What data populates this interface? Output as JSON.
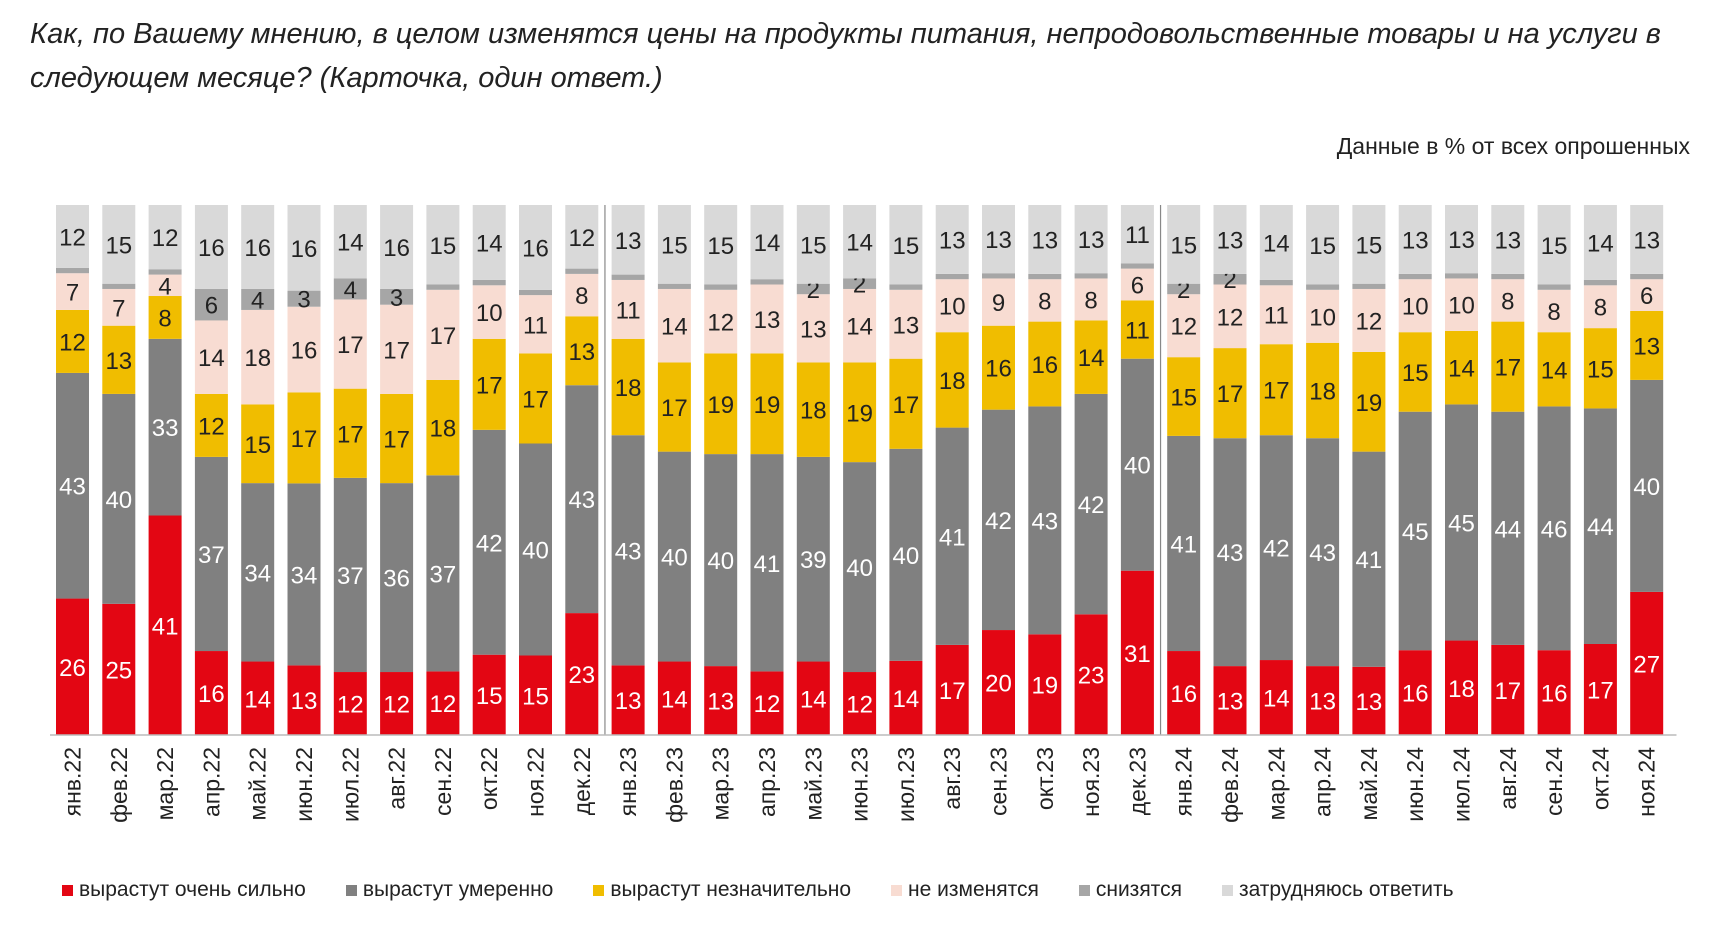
{
  "title": "Как, по Вашему мнению, в целом изменятся цены на продукты питания, непродовольственные товары и на услуги в следующем месяце? (Карточка, один ответ.)",
  "subtitle": "Данные в % от всех опрошенных",
  "chart_data": {
    "type": "stacked-bar",
    "ylim": [
      0,
      100
    ],
    "grid": false,
    "legend_placement": "bottom",
    "categories": [
      "янв.22",
      "фев.22",
      "мар.22",
      "апр.22",
      "май.22",
      "июн.22",
      "июл.22",
      "авг.22",
      "сен.22",
      "окт.22",
      "ноя.22",
      "дек.22",
      "янв.23",
      "фев.23",
      "мар.23",
      "апр.23",
      "май.23",
      "июн.23",
      "июл.23",
      "авг.23",
      "сен.23",
      "окт.23",
      "ноя.23",
      "дек.23",
      "янв.24",
      "фев.24",
      "мар.24",
      "апр.24",
      "май.24",
      "июн.24",
      "июл.24",
      "авг.24",
      "сен.24",
      "окт.24",
      "ноя.24"
    ],
    "series": [
      {
        "name": "вырастут очень сильно",
        "color": "#e30613",
        "label_color": "#ffffff",
        "values": [
          26,
          25,
          41,
          16,
          14,
          13,
          12,
          12,
          12,
          15,
          15,
          23,
          13,
          14,
          13,
          12,
          14,
          12,
          14,
          17,
          20,
          19,
          23,
          31,
          16,
          13,
          14,
          13,
          13,
          16,
          18,
          17,
          16,
          17,
          27
        ]
      },
      {
        "name": "вырастут умеренно",
        "color": "#808080",
        "label_color": "#ffffff",
        "values": [
          43,
          40,
          33,
          37,
          34,
          34,
          37,
          36,
          37,
          42,
          40,
          43,
          43,
          40,
          40,
          41,
          39,
          40,
          40,
          41,
          42,
          43,
          42,
          40,
          41,
          43,
          42,
          43,
          41,
          45,
          45,
          44,
          46,
          44,
          40
        ]
      },
      {
        "name": "вырастут незначительно",
        "color": "#f0bd00",
        "label_color": "#222222",
        "values": [
          12,
          13,
          8,
          12,
          15,
          17,
          17,
          17,
          18,
          17,
          17,
          13,
          18,
          17,
          19,
          19,
          18,
          19,
          17,
          18,
          16,
          16,
          14,
          11,
          15,
          17,
          17,
          18,
          19,
          15,
          14,
          17,
          14,
          15,
          13
        ]
      },
      {
        "name": "не изменятся",
        "color": "#f8dcd2",
        "label_color": "#222222",
        "values": [
          7,
          7,
          4,
          14,
          18,
          16,
          17,
          17,
          17,
          10,
          11,
          8,
          11,
          14,
          12,
          13,
          13,
          14,
          13,
          10,
          9,
          8,
          8,
          6,
          12,
          12,
          11,
          10,
          12,
          10,
          10,
          8,
          8,
          8,
          6
        ]
      },
      {
        "name": "снизятся",
        "color": "#a6a6a6",
        "label_color": "#222222",
        "values": [
          1,
          1,
          1,
          6,
          4,
          3,
          4,
          3,
          1,
          1,
          1,
          1,
          1,
          1,
          1,
          1,
          2,
          2,
          1,
          1,
          1,
          1,
          1,
          1,
          2,
          2,
          1,
          1,
          1,
          1,
          1,
          1,
          1,
          1,
          1
        ]
      },
      {
        "name": "затрудняюсь ответить",
        "color": "#d9d9d9",
        "label_color": "#222222",
        "values": [
          12,
          15,
          12,
          16,
          16,
          16,
          14,
          16,
          15,
          14,
          16,
          12,
          13,
          15,
          15,
          14,
          15,
          14,
          15,
          13,
          13,
          13,
          13,
          11,
          15,
          13,
          14,
          15,
          15,
          13,
          13,
          13,
          15,
          14,
          13
        ]
      }
    ]
  }
}
